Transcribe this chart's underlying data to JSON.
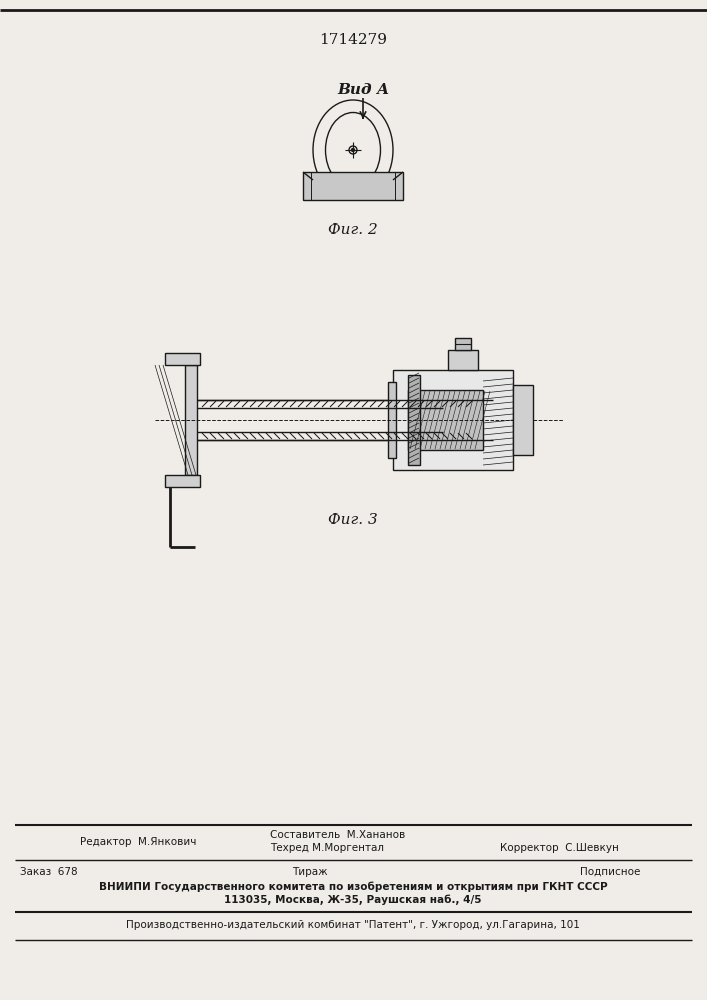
{
  "patent_number": "1714279",
  "fig2_label": "Фиг. 2",
  "fig2_view_label": "Вид А",
  "fig3_label": "Фиг. 3",
  "editor_line": "Редактор  М.Янкович",
  "composer_line": "Составитель  М.Хананов",
  "techred_line": "Техред М.Моргентал",
  "corrector_line": "Корректор  С.Шевкун",
  "order_line": "Заказ  678",
  "tirazh_line": "Тираж",
  "podpisnoe_line": "Подписное",
  "vniiipi_line1": "ВНИИПИ Государственного комитета по изобретениям и открытиям при ГКНТ СССР",
  "vniiipi_line2": "113035, Москва, Ж-35, Раушская наб., 4/5",
  "publisher_line": "Производственно-издательский комбинат \"Патент\", г. Ужгород, ул.Гагарина, 101",
  "bg_color": "#f0ede8",
  "line_color": "#1a1a1a",
  "hatch_color": "#1a1a1a"
}
